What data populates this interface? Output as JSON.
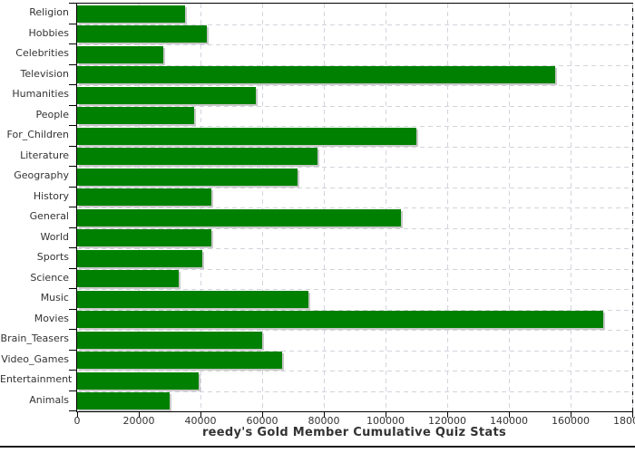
{
  "chart_data": {
    "type": "bar",
    "orientation": "horizontal",
    "title": "reedy's Gold Member Cumulative Quiz Stats",
    "categories": [
      "Religion",
      "Hobbies",
      "Celebrities",
      "Television",
      "Humanities",
      "People",
      "For_Children",
      "Literature",
      "Geography",
      "History",
      "General",
      "World",
      "Sports",
      "Science",
      "Music",
      "Movies",
      "Brain_Teasers",
      "Video_Games",
      "Entertainment",
      "Animals"
    ],
    "values": [
      35000,
      42000,
      28000,
      155000,
      58000,
      38000,
      110000,
      78000,
      71500,
      43500,
      105000,
      43500,
      40500,
      33000,
      75000,
      170500,
      60000,
      66500,
      39500,
      30000
    ],
    "xlabel": "",
    "ylabel": "",
    "xlim": [
      0,
      180000
    ],
    "x_ticks": [
      0,
      20000,
      40000,
      60000,
      80000,
      100000,
      120000,
      140000,
      160000,
      180000
    ],
    "x_tick_labels": [
      "0",
      "20000",
      "40000",
      "60000",
      "80000",
      "100000",
      "120000",
      "140000",
      "160000",
      "180000"
    ],
    "grid": "dashed-both-axes",
    "legend": "none",
    "colors": {
      "bar": "#008000",
      "bar_shadow": "#c9c9c9",
      "gridline": "#d2d4dc",
      "axis": "#000000",
      "text": "#333333",
      "background": "#ffffff",
      "bottom_rule": "#1c1c1c"
    }
  }
}
